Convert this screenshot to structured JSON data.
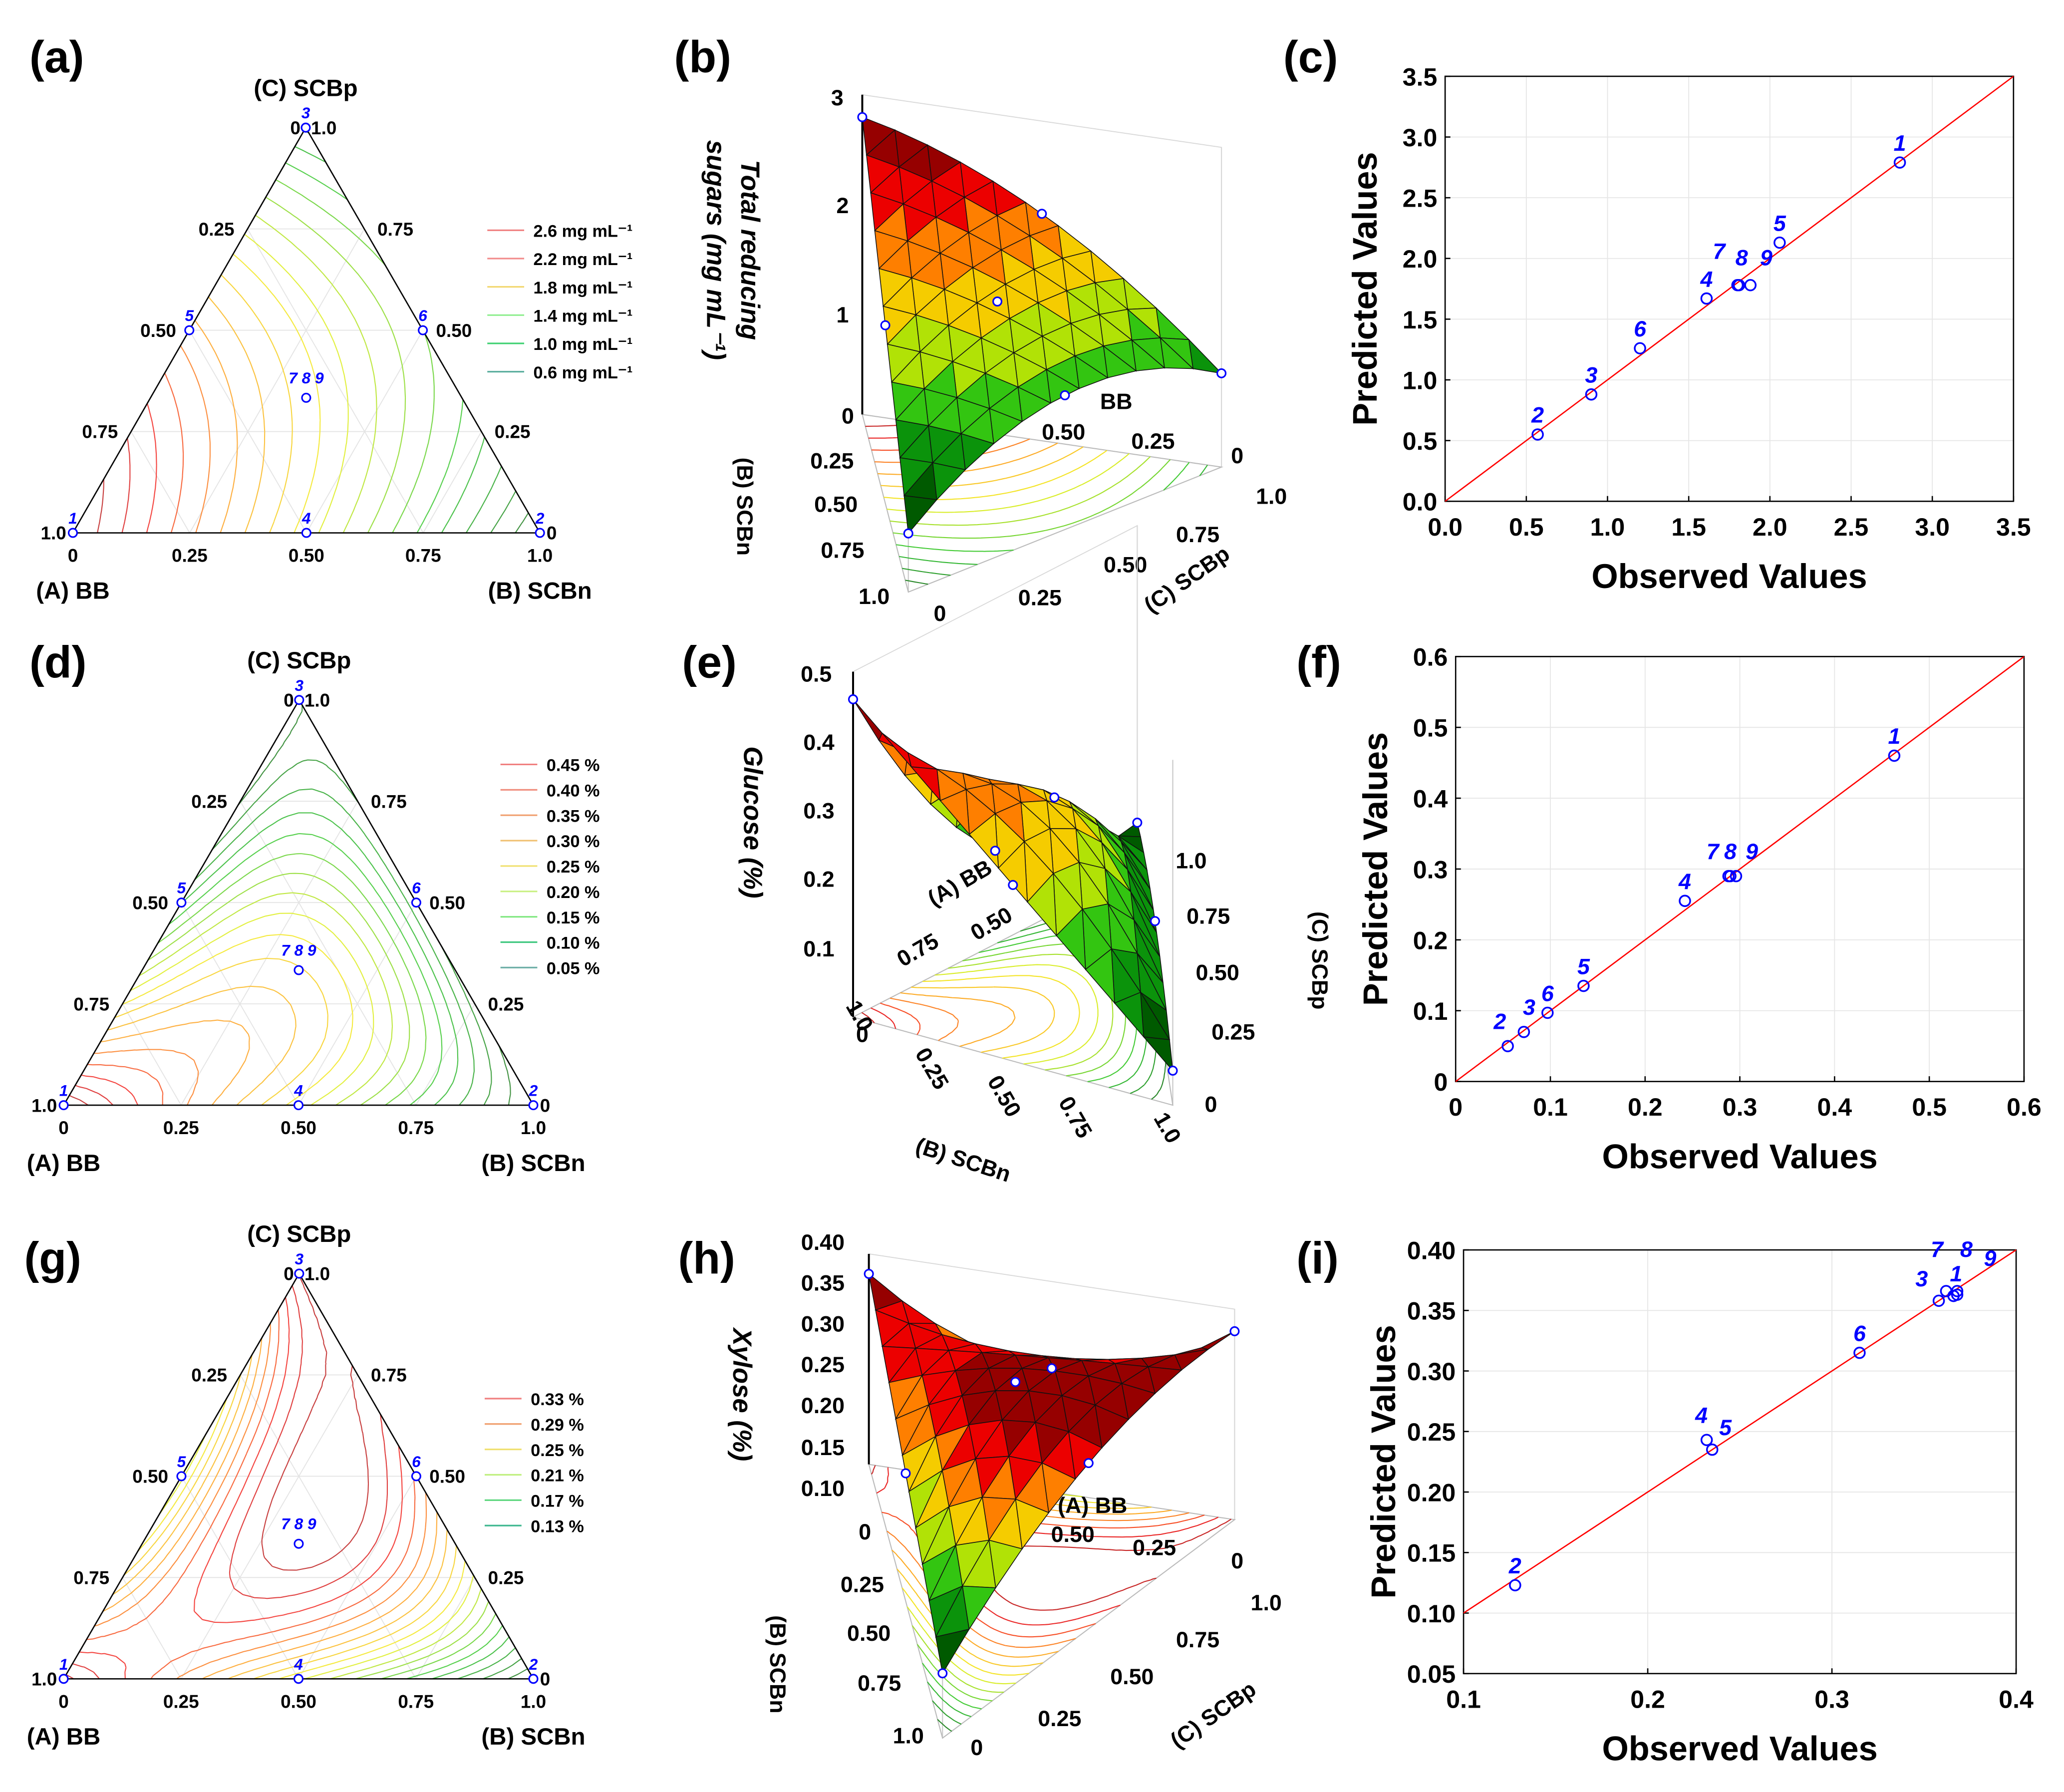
{
  "chart_data": [
    {
      "panel": "(a)",
      "type": "ternary-contour",
      "vertex_labels": {
        "A": "(A) BB",
        "B": "(B) SCBn",
        "C": "(C) SCBp"
      },
      "ticks": [
        "0",
        "0.25",
        "0.50",
        "0.75",
        "1.0"
      ],
      "design_point_labels": [
        "1",
        "2",
        "3",
        "4",
        "5",
        "6",
        "7 8 9"
      ],
      "legend": [
        {
          "label": "2.6 mg mL⁻¹",
          "color": "#f08080"
        },
        {
          "label": "2.2 mg mL⁻¹",
          "color": "#f28a8a"
        },
        {
          "label": "1.8 mg mL⁻¹",
          "color": "#f2d873"
        },
        {
          "label": "1.4 mg mL⁻¹",
          "color": "#90ee90"
        },
        {
          "label": "1.0 mg mL⁻¹",
          "color": "#3cd070"
        },
        {
          "label": "0.6 mg mL⁻¹",
          "color": "#5fb0a0"
        }
      ]
    },
    {
      "panel": "(b)",
      "type": "surface3d",
      "z_title": [
        "Total reducing",
        "sugars (mg mL⁻¹)"
      ],
      "z_range": [
        0,
        3
      ],
      "labels": [
        "3",
        "2",
        "1",
        "0",
        "0.25",
        "0.50",
        "0.75",
        "1.0",
        "BB",
        "0.50",
        "0.25",
        "0",
        "1.0",
        "0.75",
        "0.50",
        "0.25",
        "0",
        "(B) SCBn",
        "(C) SCBp"
      ]
    },
    {
      "panel": "(c)",
      "type": "scatter",
      "xlabel": "Observed Values",
      "ylabel": "Predicted Values",
      "xlim": [
        0,
        3.5
      ],
      "ylim": [
        0,
        3.5
      ],
      "xticks": [
        "0.0",
        "0.5",
        "1.0",
        "1.5",
        "2.0",
        "2.5",
        "3.0",
        "3.5"
      ],
      "yticks": [
        "0.0",
        "0.5",
        "1.0",
        "1.5",
        "2.0",
        "2.5",
        "3.0",
        "3.5"
      ],
      "labels": [
        "1",
        "2",
        "3",
        "4",
        "5",
        "6",
        "7",
        "8",
        "9"
      ],
      "observed": [
        2.8,
        0.57,
        0.9,
        1.61,
        2.06,
        1.2,
        1.8,
        1.81,
        1.88
      ],
      "predicted": [
        2.79,
        0.55,
        0.88,
        1.67,
        2.13,
        1.26,
        1.78,
        1.78,
        1.78
      ]
    },
    {
      "panel": "(d)",
      "type": "ternary-contour",
      "vertex_labels": {
        "A": "(A) BB",
        "B": "(B) SCBn",
        "C": "(C) SCBp"
      },
      "ticks": [
        "0",
        "0.25",
        "0.50",
        "0.75",
        "1.0"
      ],
      "design_point_labels": [
        "1",
        "2",
        "3",
        "4",
        "5",
        "6",
        "7 8 9"
      ],
      "legend": [
        {
          "label": "0.45 %",
          "color": "#f08080"
        },
        {
          "label": "0.40 %",
          "color": "#f08a7a"
        },
        {
          "label": "0.35 %",
          "color": "#f0a070"
        },
        {
          "label": "0.30 %",
          "color": "#f0c070"
        },
        {
          "label": "0.25 %",
          "color": "#f0e070"
        },
        {
          "label": "0.20 %",
          "color": "#c8f080"
        },
        {
          "label": "0.15 %",
          "color": "#80e880"
        },
        {
          "label": "0.10 %",
          "color": "#40c880"
        },
        {
          "label": "0.05 %",
          "color": "#70b0a8"
        }
      ]
    },
    {
      "panel": "(e)",
      "type": "surface3d",
      "z_title": [
        "Glucose (%)"
      ],
      "z_range": [
        0,
        0.5
      ],
      "labels": [
        "0.5",
        "0.4",
        "0.3",
        "0.2",
        "0.1",
        "1.0",
        "(A) BB",
        "0.75",
        "0.50",
        "0",
        "0.25",
        "0.50",
        "0.75",
        "1.0",
        "(B) SCBn",
        "1.0",
        "0.75",
        "0.50",
        "0.25",
        "0",
        "(C) SCBp"
      ]
    },
    {
      "panel": "(f)",
      "type": "scatter",
      "xlabel": "Observed Values",
      "ylabel": "Predicted Values",
      "xlim": [
        0,
        0.6
      ],
      "ylim": [
        0,
        0.6
      ],
      "xticks": [
        "0",
        "0.1",
        "0.2",
        "0.3",
        "0.4",
        "0.5",
        "0.6"
      ],
      "yticks": [
        "0",
        "0.1",
        "0.2",
        "0.3",
        "0.4",
        "0.5",
        "0.6"
      ],
      "labels": [
        "1",
        "2",
        "3",
        "4",
        "5",
        "6",
        "7",
        "8",
        "9"
      ],
      "observed": [
        0.463,
        0.055,
        0.072,
        0.242,
        0.135,
        0.097,
        0.288,
        0.29,
        0.296
      ],
      "predicted": [
        0.46,
        0.05,
        0.07,
        0.255,
        0.135,
        0.097,
        0.29,
        0.29,
        0.29
      ]
    },
    {
      "panel": "(g)",
      "type": "ternary-contour",
      "vertex_labels": {
        "A": "(A) BB",
        "B": "(B) SCBn",
        "C": "(C) SCBp"
      },
      "ticks": [
        "0",
        "0.25",
        "0.50",
        "0.75",
        "1.0"
      ],
      "design_point_labels": [
        "1",
        "2",
        "3",
        "4",
        "5",
        "6",
        "7 8 9"
      ],
      "legend": [
        {
          "label": "0.33 %",
          "color": "#f08080"
        },
        {
          "label": "0.29 %",
          "color": "#f0a070"
        },
        {
          "label": "0.25 %",
          "color": "#f0e070"
        },
        {
          "label": "0.21 %",
          "color": "#c0f080"
        },
        {
          "label": "0.17 %",
          "color": "#60d880"
        },
        {
          "label": "0.13 %",
          "color": "#40b890"
        }
      ]
    },
    {
      "panel": "(h)",
      "type": "surface3d",
      "z_title": [
        "Xylose (%)"
      ],
      "z_range": [
        0,
        0.4
      ],
      "labels": [
        "0.40",
        "0.35",
        "0.30",
        "0.25",
        "0.20",
        "0.15",
        "0.10",
        "0",
        "0.25",
        "0.50",
        "0.75",
        "1.0",
        "(A) BB",
        "0.50",
        "0.25",
        "0",
        "1.0",
        "0.75",
        "0.50",
        "0.25",
        "0",
        "(B) SCBn",
        "(C) SCBp"
      ]
    },
    {
      "panel": "(i)",
      "type": "scatter",
      "xlabel": "Observed Values",
      "ylabel": "Predicted Values",
      "xlim": [
        0.1,
        0.4
      ],
      "ylim": [
        0.05,
        0.4
      ],
      "xticks": [
        "0.1",
        "0.2",
        "0.3",
        "0.4"
      ],
      "yticks": [
        "0.05",
        "0.10",
        "0.15",
        "0.20",
        "0.25",
        "0.30",
        "0.35",
        "0.40"
      ],
      "labels": [
        "1",
        "2",
        "3",
        "4",
        "5",
        "6",
        "7",
        "8",
        "9"
      ],
      "observed": [
        0.366,
        0.128,
        0.358,
        0.232,
        0.235,
        0.315,
        0.362,
        0.368,
        0.368
      ],
      "predicted": [
        0.362,
        0.123,
        0.358,
        0.243,
        0.235,
        0.315,
        0.366,
        0.366,
        0.363
      ]
    }
  ]
}
